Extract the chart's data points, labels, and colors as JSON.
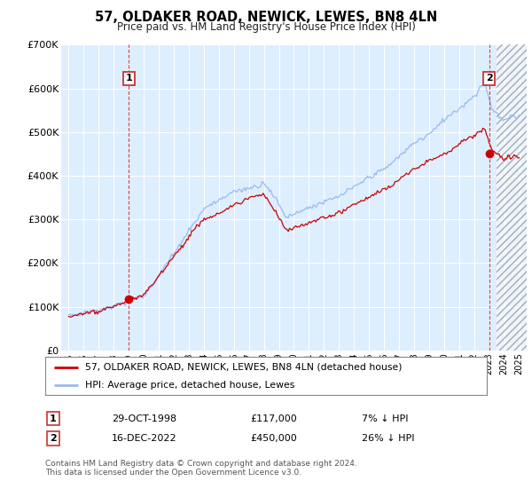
{
  "title": "57, OLDAKER ROAD, NEWICK, LEWES, BN8 4LN",
  "subtitle": "Price paid vs. HM Land Registry's House Price Index (HPI)",
  "legend_line1": "57, OLDAKER ROAD, NEWICK, LEWES, BN8 4LN (detached house)",
  "legend_line2": "HPI: Average price, detached house, Lewes",
  "footnote": "Contains HM Land Registry data © Crown copyright and database right 2024.\nThis data is licensed under the Open Government Licence v3.0.",
  "transaction1_date": "29-OCT-1998",
  "transaction1_price": 117000,
  "transaction1_label": "7% ↓ HPI",
  "transaction2_date": "16-DEC-2022",
  "transaction2_price": 450000,
  "transaction2_label": "26% ↓ HPI",
  "t1_x": 1999.0,
  "t1_y": 117000,
  "t2_x": 2023.0,
  "t2_y": 450000,
  "property_color": "#cc0000",
  "hpi_color": "#99bbee",
  "dashed_line_color": "#cc3333",
  "plot_bg_color": "#ddeeff",
  "ylim": [
    0,
    700000
  ],
  "yticks": [
    0,
    100000,
    200000,
    300000,
    400000,
    500000,
    600000,
    700000
  ],
  "ytick_labels": [
    "£0",
    "£100K",
    "£200K",
    "£300K",
    "£400K",
    "£500K",
    "£600K",
    "£700K"
  ],
  "xlim_min": 1994.5,
  "xlim_max": 2025.5,
  "xtick_start": 1995,
  "xtick_end": 2025,
  "future_start": 2023.5
}
